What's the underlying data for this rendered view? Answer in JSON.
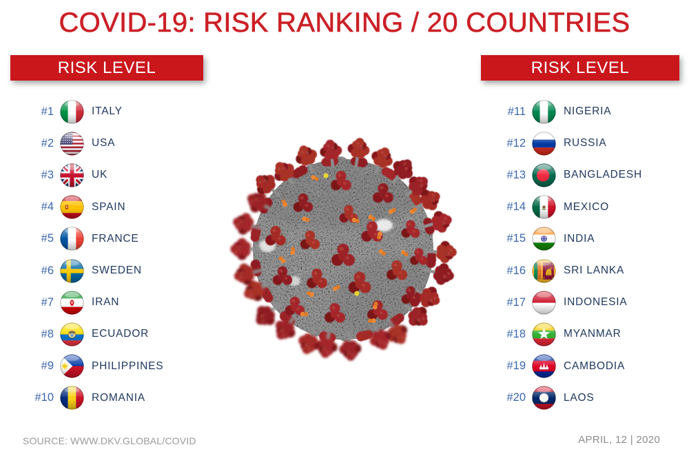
{
  "title": "COVID-19: RISK RANKING / 20 COUNTRIES",
  "left_panel": {
    "header": "RISK LEVEL",
    "items": [
      {
        "rank": "#1",
        "country": "ITALY",
        "flag": "italy"
      },
      {
        "rank": "#2",
        "country": "USA",
        "flag": "usa"
      },
      {
        "rank": "#3",
        "country": "UK",
        "flag": "uk"
      },
      {
        "rank": "#4",
        "country": "SPAIN",
        "flag": "spain"
      },
      {
        "rank": "#5",
        "country": "FRANCE",
        "flag": "france"
      },
      {
        "rank": "#6",
        "country": "SWEDEN",
        "flag": "sweden"
      },
      {
        "rank": "#7",
        "country": "IRAN",
        "flag": "iran"
      },
      {
        "rank": "#8",
        "country": "ECUADOR",
        "flag": "ecuador"
      },
      {
        "rank": "#9",
        "country": "PHILIPPINES",
        "flag": "philippines"
      },
      {
        "rank": "#10",
        "country": "ROMANIA",
        "flag": "romania"
      }
    ]
  },
  "right_panel": {
    "header": "RISK LEVEL",
    "items": [
      {
        "rank": "#11",
        "country": "NIGERIA",
        "flag": "nigeria"
      },
      {
        "rank": "#12",
        "country": "RUSSIA",
        "flag": "russia"
      },
      {
        "rank": "#13",
        "country": "BANGLADESH",
        "flag": "bangladesh"
      },
      {
        "rank": "#14",
        "country": "MEXICO",
        "flag": "mexico"
      },
      {
        "rank": "#15",
        "country": "INDIA",
        "flag": "india"
      },
      {
        "rank": "#16",
        "country": "SRI LANKA",
        "flag": "sri-lanka"
      },
      {
        "rank": "#17",
        "country": "INDONESIA",
        "flag": "indonesia"
      },
      {
        "rank": "#18",
        "country": "MYANMAR",
        "flag": "myanmar"
      },
      {
        "rank": "#19",
        "country": "CAMBODIA",
        "flag": "cambodia"
      },
      {
        "rank": "#20",
        "country": "LAOS",
        "flag": "laos"
      }
    ]
  },
  "center_image": "coronavirus-illustration",
  "footer": {
    "source": "SOURCE: WWW.DKV.GLOBAL/COVID",
    "date": "APRIL, 12 | 2020"
  },
  "colors": {
    "accent_red": "#c9171c",
    "title_red": "#cb2026",
    "rank_blue": "#3a67ad",
    "country_navy": "#20395f"
  }
}
